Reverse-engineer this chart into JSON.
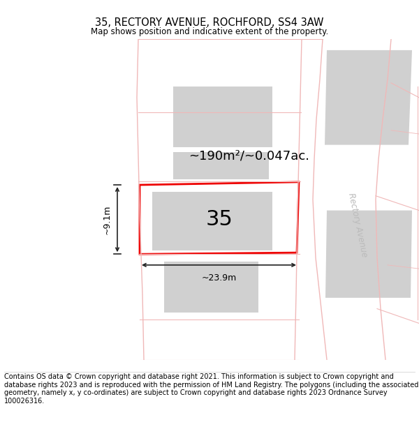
{
  "title": "35, RECTORY AVENUE, ROCHFORD, SS4 3AW",
  "subtitle": "Map shows position and indicative extent of the property.",
  "footer": "Contains OS data © Crown copyright and database right 2021. This information is subject to Crown copyright and database rights 2023 and is reproduced with the permission of HM Land Registry. The polygons (including the associated geometry, namely x, y co-ordinates) are subject to Crown copyright and database rights 2023 Ordnance Survey 100026316.",
  "area_text": "~190m²/~0.047ac.",
  "width_label": "~23.9m",
  "height_label": "~9.1m",
  "plot_number": "35",
  "bg_color": "#ffffff",
  "road_color": "#f0b8b8",
  "building_color": "#d0d0d0",
  "highlight_color": "#ee0000",
  "dim_line_color": "#222222",
  "road_label_color": "#bbbbbb",
  "title_fontsize": 10.5,
  "subtitle_fontsize": 8.5,
  "footer_fontsize": 7.0,
  "plot35_number_fontsize": 22,
  "area_fontsize": 13
}
